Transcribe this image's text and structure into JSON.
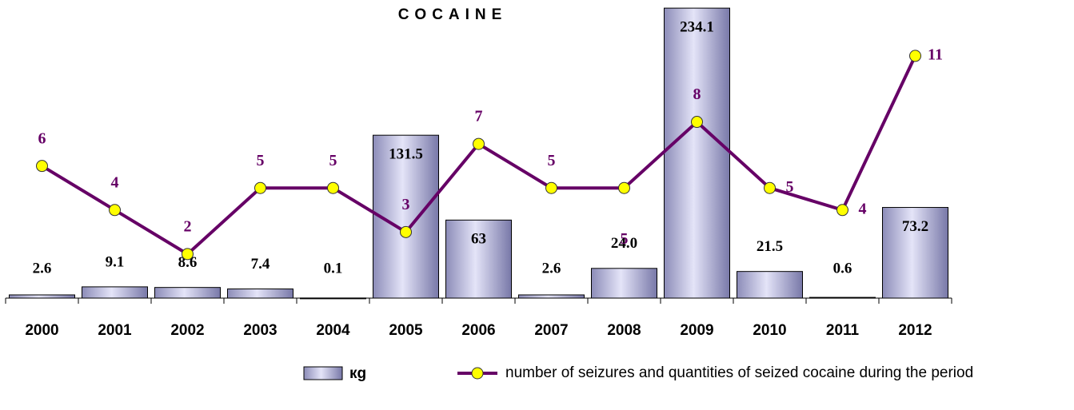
{
  "chart_data": {
    "type": "bar-line",
    "title": "COCAINE",
    "categories": [
      "2000",
      "2001",
      "2002",
      "2003",
      "2004",
      "2005",
      "2006",
      "2007",
      "2008",
      "2009",
      "2010",
      "2011",
      "2012"
    ],
    "series": [
      {
        "name": "кg",
        "color": "#a0a0d0",
        "values": [
          2.6,
          9.1,
          8.6,
          7.4,
          0.1,
          131.5,
          63,
          2.6,
          24.0,
          234.1,
          21.5,
          0.6,
          73.2
        ],
        "value_labels": [
          "2.6",
          "9.1",
          "8.6",
          "7.4",
          "0.1",
          "131.5",
          "63",
          "2.6",
          "24.0",
          "234.1",
          "21.5",
          "0.6",
          "73.2"
        ]
      },
      {
        "name": "number of seizures and quantities of seized cocaine during the period",
        "color": "#660066",
        "axis": "y2",
        "values": [
          6,
          4,
          2,
          5,
          5,
          3,
          7,
          5,
          5,
          8,
          5,
          4,
          11
        ]
      }
    ],
    "ylim": [
      0,
      240
    ],
    "y2lim": [
      0,
      13.5
    ]
  }
}
